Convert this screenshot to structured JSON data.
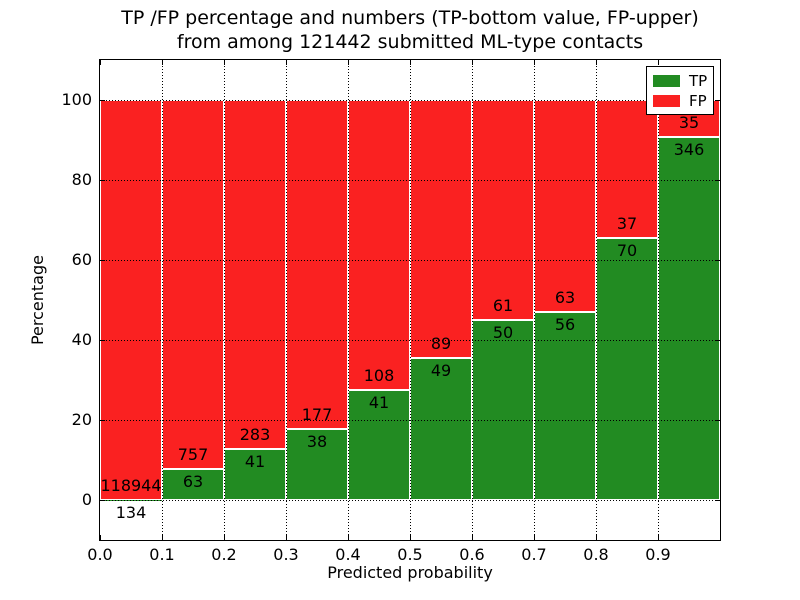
{
  "chart_data": {
    "type": "stacked_bar",
    "title_line1": "TP /FP percentage and numbers (TP-bottom value, FP-upper)",
    "title_line2": "from among 121442 submitted ML-type contacts",
    "total_submitted": 121442,
    "xlabel": "Predicted probability",
    "ylabel": "Percentage",
    "xlim": [
      0.0,
      1.0
    ],
    "ylim": [
      -10,
      110
    ],
    "xtick_labels": [
      "0.0",
      "0.1",
      "0.2",
      "0.3",
      "0.4",
      "0.5",
      "0.6",
      "0.7",
      "0.8",
      "0.9"
    ],
    "ytick_values": [
      0,
      20,
      40,
      60,
      80,
      100
    ],
    "grid_style": "dotted",
    "bar_edge_color": "#ffffff",
    "colors": {
      "tp": "#228b22",
      "fp": "#fa2121"
    },
    "legend": {
      "location": "upper right",
      "entries": [
        {
          "label": "TP",
          "color_key": "tp"
        },
        {
          "label": "FP",
          "color_key": "fp"
        }
      ]
    },
    "bins": [
      {
        "range": [
          0.0,
          0.1
        ],
        "tp": 134,
        "fp": 118944,
        "tp_pct": 0.11
      },
      {
        "range": [
          0.1,
          0.2
        ],
        "tp": 63,
        "fp": 757,
        "tp_pct": 7.68
      },
      {
        "range": [
          0.2,
          0.3
        ],
        "tp": 41,
        "fp": 283,
        "tp_pct": 12.65
      },
      {
        "range": [
          0.3,
          0.4
        ],
        "tp": 38,
        "fp": 177,
        "tp_pct": 17.67
      },
      {
        "range": [
          0.4,
          0.5
        ],
        "tp": 41,
        "fp": 108,
        "tp_pct": 27.52
      },
      {
        "range": [
          0.5,
          0.6
        ],
        "tp": 49,
        "fp": 89,
        "tp_pct": 35.51
      },
      {
        "range": [
          0.6,
          0.7
        ],
        "tp": 50,
        "fp": 61,
        "tp_pct": 45.05
      },
      {
        "range": [
          0.7,
          0.8
        ],
        "tp": 56,
        "fp": 63,
        "tp_pct": 47.06
      },
      {
        "range": [
          0.8,
          0.9
        ],
        "tp": 70,
        "fp": 37,
        "tp_pct": 65.42
      },
      {
        "range": [
          0.9,
          1.0
        ],
        "tp": 346,
        "fp": 35,
        "tp_pct": 90.81
      }
    ]
  }
}
